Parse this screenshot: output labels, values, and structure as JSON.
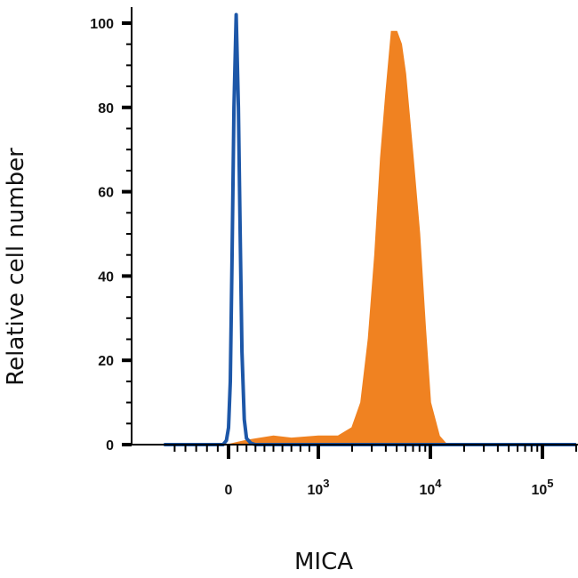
{
  "chart_data": {
    "type": "area",
    "xlabel": "MICA",
    "ylabel": "Relative cell number",
    "ylim": [
      0,
      100
    ],
    "y_ticks": [
      {
        "value": 0,
        "label": "0"
      },
      {
        "value": 20,
        "label": "20"
      },
      {
        "value": 40,
        "label": "40"
      },
      {
        "value": 60,
        "label": "60"
      },
      {
        "value": 80,
        "label": "80"
      },
      {
        "value": 100,
        "label": "100"
      }
    ],
    "x_scale": "biexponential",
    "x_ticks": [
      {
        "value": 0,
        "base": "0",
        "exp": ""
      },
      {
        "value": 1000,
        "base": "10",
        "exp": "3"
      },
      {
        "value": 10000,
        "base": "10",
        "exp": "4"
      },
      {
        "value": 100000,
        "base": "10",
        "exp": "5"
      }
    ],
    "grid": false,
    "series": [
      {
        "color": "#F08221",
        "style": "filled",
        "points": [
          [
            -600,
            0
          ],
          [
            0,
            0
          ],
          [
            100,
            0.5
          ],
          [
            200,
            1
          ],
          [
            500,
            2
          ],
          [
            700,
            1.5
          ],
          [
            1000,
            2
          ],
          [
            1500,
            2
          ],
          [
            2000,
            4
          ],
          [
            2400,
            10
          ],
          [
            2800,
            25
          ],
          [
            3200,
            45
          ],
          [
            3600,
            68
          ],
          [
            4000,
            83
          ],
          [
            4500,
            98
          ],
          [
            5000,
            98
          ],
          [
            5500,
            95
          ],
          [
            6000,
            88
          ],
          [
            7000,
            68
          ],
          [
            8000,
            50
          ],
          [
            9000,
            28
          ],
          [
            10000,
            10
          ],
          [
            12000,
            2
          ],
          [
            14000,
            0
          ],
          [
            200000,
            0
          ]
        ]
      },
      {
        "color": "#1D57A8",
        "style": "outline",
        "points": [
          [
            -600,
            0
          ],
          [
            -50,
            0
          ],
          [
            -20,
            1
          ],
          [
            0,
            4
          ],
          [
            20,
            15
          ],
          [
            40,
            45
          ],
          [
            60,
            80
          ],
          [
            85,
            102
          ],
          [
            110,
            80
          ],
          [
            130,
            50
          ],
          [
            150,
            22
          ],
          [
            175,
            6
          ],
          [
            200,
            1.5
          ],
          [
            250,
            0.3
          ],
          [
            300,
            0
          ],
          [
            200000,
            0
          ]
        ]
      }
    ]
  }
}
